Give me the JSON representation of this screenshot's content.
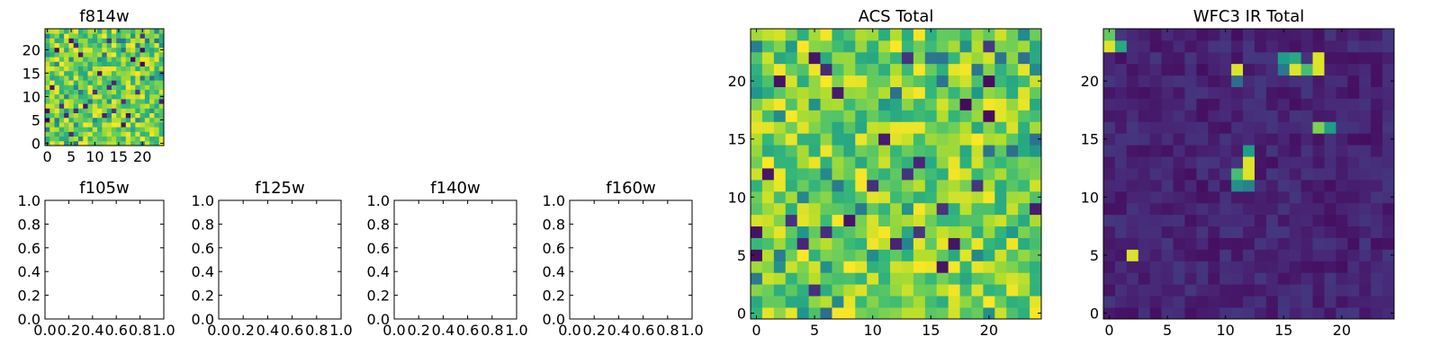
{
  "chart_data": [
    {
      "type": "heatmap",
      "title": "f814w",
      "xlim": [
        -0.5,
        24.5
      ],
      "ylim": [
        -0.5,
        24.5
      ],
      "xticks": [
        0,
        5,
        10,
        15,
        20
      ],
      "yticks": [
        0,
        5,
        10,
        15,
        20
      ],
      "colormap": "viridis",
      "size": 25,
      "texture": "acs"
    },
    {
      "type": "empty",
      "title": "f105w",
      "xlim": [
        0,
        1
      ],
      "ylim": [
        0,
        1
      ],
      "xticks": [
        "0.0",
        "0.2",
        "0.4",
        "0.6",
        "0.8",
        "1.0"
      ],
      "yticks": [
        "0.0",
        "0.2",
        "0.4",
        "0.6",
        "0.8",
        "1.0"
      ]
    },
    {
      "type": "empty",
      "title": "f125w",
      "xlim": [
        0,
        1
      ],
      "ylim": [
        0,
        1
      ],
      "xticks": [
        "0.0",
        "0.2",
        "0.4",
        "0.6",
        "0.8",
        "1.0"
      ],
      "yticks": [
        "0.0",
        "0.2",
        "0.4",
        "0.6",
        "0.8",
        "1.0"
      ]
    },
    {
      "type": "empty",
      "title": "f140w",
      "xlim": [
        0,
        1
      ],
      "ylim": [
        0,
        1
      ],
      "xticks": [
        "0.0",
        "0.2",
        "0.4",
        "0.6",
        "0.8",
        "1.0"
      ],
      "yticks": [
        "0.0",
        "0.2",
        "0.4",
        "0.6",
        "0.8",
        "1.0"
      ]
    },
    {
      "type": "empty",
      "title": "f160w",
      "xlim": [
        0,
        1
      ],
      "ylim": [
        0,
        1
      ],
      "xticks": [
        "0.0",
        "0.2",
        "0.4",
        "0.6",
        "0.8",
        "1.0"
      ],
      "yticks": [
        "0.0",
        "0.2",
        "0.4",
        "0.6",
        "0.8",
        "1.0"
      ]
    },
    {
      "type": "heatmap",
      "title": "ACS Total",
      "xlim": [
        -0.5,
        24.5
      ],
      "ylim": [
        -0.5,
        24.5
      ],
      "xticks": [
        0,
        5,
        10,
        15,
        20
      ],
      "yticks": [
        0,
        5,
        10,
        15,
        20
      ],
      "colormap": "viridis",
      "size": 25,
      "texture": "acs"
    },
    {
      "type": "heatmap",
      "title": "WFC3 IR Total",
      "xlim": [
        -0.5,
        24.5
      ],
      "ylim": [
        -0.5,
        24.5
      ],
      "xticks": [
        0,
        5,
        10,
        15,
        20
      ],
      "yticks": [
        0,
        5,
        10,
        15,
        20
      ],
      "colormap": "viridis",
      "size": 25,
      "texture": "ir",
      "hotspots": [
        {
          "x": 0,
          "y": 23,
          "v": 0.95
        },
        {
          "x": 1,
          "y": 23,
          "v": 0.6
        },
        {
          "x": 0,
          "y": 24,
          "v": 0.75
        },
        {
          "x": 11,
          "y": 21,
          "v": 0.95
        },
        {
          "x": 11,
          "y": 20,
          "v": 0.35
        },
        {
          "x": 15,
          "y": 22,
          "v": 0.55
        },
        {
          "x": 16,
          "y": 22,
          "v": 0.6
        },
        {
          "x": 15,
          "y": 21,
          "v": 0.4
        },
        {
          "x": 16,
          "y": 21,
          "v": 0.95
        },
        {
          "x": 17,
          "y": 21,
          "v": 0.7
        },
        {
          "x": 18,
          "y": 22,
          "v": 0.95
        },
        {
          "x": 18,
          "y": 21,
          "v": 0.95
        },
        {
          "x": 18,
          "y": 16,
          "v": 0.8
        },
        {
          "x": 19,
          "y": 16,
          "v": 0.55
        },
        {
          "x": 12,
          "y": 14,
          "v": 0.55
        },
        {
          "x": 12,
          "y": 13,
          "v": 0.95
        },
        {
          "x": 12,
          "y": 12,
          "v": 0.95
        },
        {
          "x": 11,
          "y": 12,
          "v": 0.7
        },
        {
          "x": 11,
          "y": 11,
          "v": 0.5
        },
        {
          "x": 12,
          "y": 11,
          "v": 0.45
        },
        {
          "x": 2,
          "y": 5,
          "v": 0.95
        }
      ]
    }
  ]
}
